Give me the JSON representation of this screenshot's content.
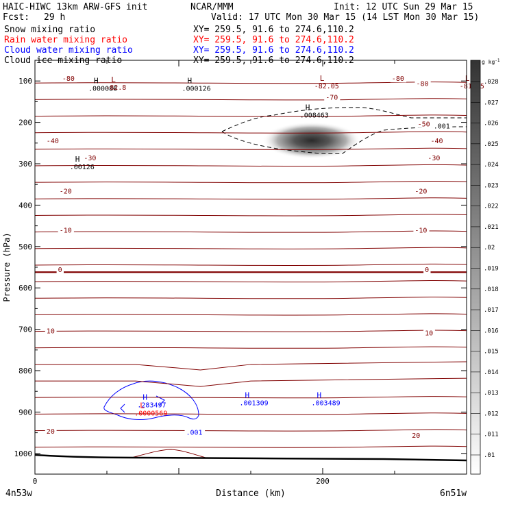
{
  "header": {
    "model": "HAIC-HIWC 13km ARW-GFS init",
    "center": "NCAR/MMM",
    "init": "Init: 12 UTC Sun 29 Mar 15",
    "fcst_label": "Fcst:",
    "fcst_value": "29 h",
    "valid": "Valid: 17 UTC Mon 30 Mar 15 (14 LST Mon 30 Mar 15)",
    "xy": "XY= 259.5, 91.6 to 274.6,110.2"
  },
  "colors": {
    "snow": "#000000",
    "rain": "#ff0000",
    "cloud_water": "#0000ff",
    "cloud_ice": "#000000",
    "temperature": "#800000",
    "terrain": "#000000"
  },
  "chart_data": {
    "type": "cross-section",
    "title": "",
    "xlabel": "Distance (km)",
    "ylabel": "Pressure (hPa)",
    "x_ticks": [
      0,
      200
    ],
    "y_ticks": [
      100,
      200,
      300,
      400,
      500,
      600,
      700,
      800,
      900,
      1000
    ],
    "xlim": [
      0,
      300
    ],
    "ylim": [
      1050,
      50
    ],
    "left_endpoint": "4n53w",
    "right_endpoint": "6n51w",
    "fields": [
      {
        "name": "Snow mixing ratio",
        "color": "#000000",
        "xy": "XY= 259.5, 91.6 to 274.6,110.2"
      },
      {
        "name": "Rain water mixing ratio",
        "color": "#ff0000",
        "xy": "XY= 259.5, 91.6 to 274.6,110.2"
      },
      {
        "name": "Cloud water mixing ratio",
        "color": "#0000ff",
        "xy": "XY= 259.5, 91.6 to 274.6,110.2"
      },
      {
        "name": "Cloud ice mixing ratio",
        "color": "#000000",
        "xy": "XY= 259.5, 91.6 to 274.6,110.2"
      }
    ],
    "colorbar": {
      "unit": "g kg",
      "unit_exp": "-1",
      "min": 0.01,
      "max": 0.028,
      "labels": [
        ".028",
        ".027",
        ".026",
        ".025",
        ".024",
        ".023",
        ".022",
        ".021",
        ".02",
        ".019",
        ".018",
        ".017",
        ".016",
        ".015",
        ".014",
        ".013",
        ".012",
        ".011",
        ".01"
      ]
    },
    "temperature_isotherms": [
      {
        "label": "-80",
        "p": 110
      },
      {
        "label": "-70",
        "p": 150
      },
      {
        "label": "-50",
        "p": 215
      },
      {
        "label": "-40",
        "p": 250
      },
      {
        "label": "-30",
        "p": 300
      },
      {
        "label": "-20",
        "p": 370
      },
      {
        "label": "-10",
        "p": 465
      },
      {
        "label": "0",
        "p": 562
      },
      {
        "label": "10",
        "p": 710
      },
      {
        "label": "20",
        "p": 960
      }
    ],
    "extrema": [
      {
        "type": "H",
        "value": ".000086",
        "x": 40,
        "p": 115,
        "color": "#000000"
      },
      {
        "type": "L",
        "value": "-82.8",
        "x": 52,
        "p": 113,
        "color": "#800000"
      },
      {
        "type": "H",
        "value": ".000126",
        "x": 105,
        "p": 115,
        "color": "#000000"
      },
      {
        "type": "H",
        "value": ".00126",
        "x": 27,
        "p": 305,
        "color": "#000000"
      },
      {
        "type": "H",
        "value": ".008463",
        "x": 187,
        "p": 180,
        "color": "#000000"
      },
      {
        "type": "L",
        "value": "-82.05",
        "x": 197,
        "p": 110,
        "color": "#800000"
      },
      {
        "type": "L",
        "value": "-81.25",
        "x": 298,
        "p": 110,
        "color": "#800000"
      },
      {
        "type": "H",
        "value": ".001309",
        "x": 145,
        "p": 875,
        "color": "#0000ff"
      },
      {
        "type": "H",
        "value": ".003489",
        "x": 195,
        "p": 875,
        "color": "#0000ff"
      },
      {
        "type": "H",
        "value": ".283497",
        "x": 74,
        "p": 880,
        "color": "#0000ff"
      },
      {
        "type": "L",
        "value": ".0000569",
        "x": 72,
        "p": 900,
        "color": "#ff0000"
      }
    ],
    "contour_labels": [
      {
        "text": "-80",
        "x": 19,
        "p": 100,
        "color": "#800000"
      },
      {
        "text": "-80",
        "x": 248,
        "p": 100,
        "color": "#800000"
      },
      {
        "text": "-80",
        "x": 265,
        "p": 112,
        "color": "#800000"
      },
      {
        "text": "-70",
        "x": 202,
        "p": 145,
        "color": "#800000"
      },
      {
        "text": "-50",
        "x": 266,
        "p": 210,
        "color": "#800000"
      },
      {
        "text": "-40",
        "x": 8,
        "p": 250,
        "color": "#800000"
      },
      {
        "text": "-40",
        "x": 275,
        "p": 250,
        "color": "#800000"
      },
      {
        "text": "-30",
        "x": 34,
        "p": 292,
        "color": "#800000"
      },
      {
        "text": "-30",
        "x": 273,
        "p": 292,
        "color": "#800000"
      },
      {
        "text": "-20",
        "x": 17,
        "p": 372,
        "color": "#800000"
      },
      {
        "text": "-20",
        "x": 264,
        "p": 372,
        "color": "#800000"
      },
      {
        "text": "-10",
        "x": 17,
        "p": 466,
        "color": "#800000"
      },
      {
        "text": "-10",
        "x": 264,
        "p": 466,
        "color": "#800000"
      },
      {
        "text": "0",
        "x": 16,
        "p": 562,
        "color": "#800000"
      },
      {
        "text": "0",
        "x": 271,
        "p": 562,
        "color": "#800000"
      },
      {
        "text": "10",
        "x": 8,
        "p": 710,
        "color": "#800000"
      },
      {
        "text": "10",
        "x": 271,
        "p": 715,
        "color": "#800000"
      },
      {
        "text": "20",
        "x": 8,
        "p": 952,
        "color": "#800000"
      },
      {
        "text": "20",
        "x": 262,
        "p": 962,
        "color": "#800000"
      },
      {
        "text": ".001",
        "x": 277,
        "p": 215,
        "color": "#000000"
      },
      {
        "text": ".001",
        "x": 105,
        "p": 955,
        "color": "#0000ff"
      }
    ]
  }
}
